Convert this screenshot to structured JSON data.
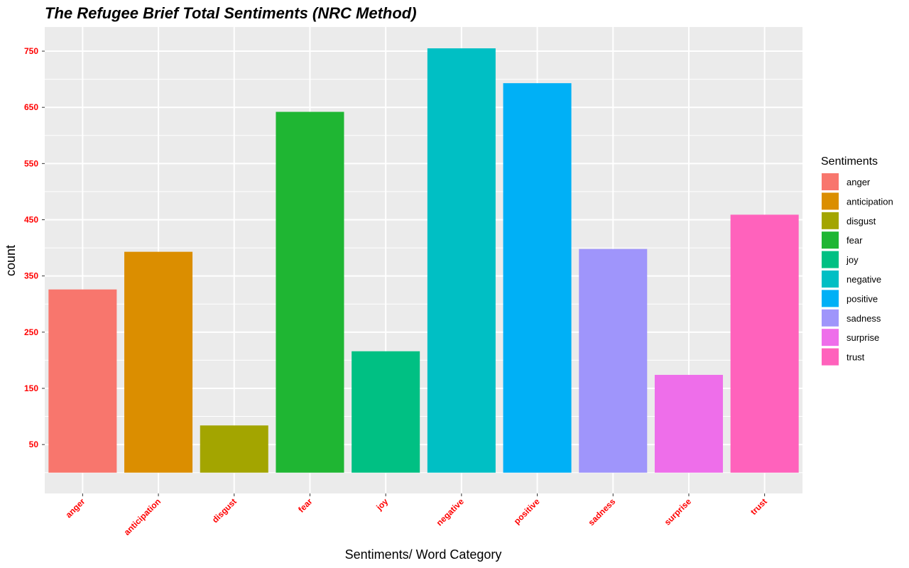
{
  "chart_data": {
    "type": "bar",
    "title": "The Refugee Brief Total Sentiments (NRC Method)",
    "xlabel": "Sentiments/ Word Category",
    "ylabel": "count",
    "categories": [
      "anger",
      "anticipation",
      "disgust",
      "fear",
      "joy",
      "negative",
      "positive",
      "sadness",
      "surprise",
      "trust"
    ],
    "values": [
      326,
      393,
      84,
      642,
      216,
      755,
      693,
      398,
      174,
      459
    ],
    "colors": [
      "#F8766D",
      "#DB8E00",
      "#A3A500",
      "#1FB633",
      "#00C083",
      "#00BFC4",
      "#00B0F6",
      "#9F95FB",
      "#EE6EEA",
      "#FF62BC"
    ],
    "yticks": [
      50,
      150,
      250,
      350,
      450,
      550,
      650,
      750
    ],
    "ylim": [
      -37,
      793
    ],
    "tick_label_color": "#FF0000",
    "panel_background": "#EBEBEB",
    "grid": true,
    "legend": {
      "title": "Sentiments",
      "position": "right",
      "entries": [
        "anger",
        "anticipation",
        "disgust",
        "fear",
        "joy",
        "negative",
        "positive",
        "sadness",
        "surprise",
        "trust"
      ]
    }
  }
}
